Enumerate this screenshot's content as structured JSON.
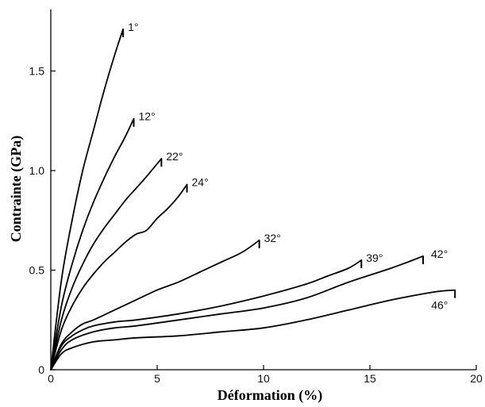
{
  "chart_data": {
    "type": "line",
    "title": "",
    "xlabel": "Déformation (%)",
    "ylabel": "Contrainte (GPa)",
    "xlim": [
      0,
      20
    ],
    "ylim": [
      0,
      1.8
    ],
    "x_ticks": [
      "0",
      "5",
      "10",
      "15",
      "20"
    ],
    "y_ticks": [
      "0",
      "0.5",
      "1.0",
      "1.5"
    ],
    "grid": false,
    "series": [
      {
        "name": "1°",
        "x": [
          0,
          0.5,
          1,
          1.5,
          2,
          2.5,
          3,
          3.4
        ],
        "y": [
          0,
          0.45,
          0.75,
          1.0,
          1.2,
          1.4,
          1.58,
          1.71
        ]
      },
      {
        "name": "12°",
        "x": [
          0,
          0.5,
          1,
          1.5,
          2,
          2.5,
          3,
          3.5,
          3.9
        ],
        "y": [
          0,
          0.32,
          0.53,
          0.7,
          0.84,
          0.96,
          1.07,
          1.17,
          1.26
        ]
      },
      {
        "name": "22°",
        "x": [
          0,
          0.5,
          1,
          1.5,
          2,
          2.5,
          3,
          3.5,
          4,
          4.5,
          5.2
        ],
        "y": [
          0,
          0.25,
          0.41,
          0.53,
          0.63,
          0.71,
          0.78,
          0.85,
          0.91,
          0.97,
          1.06
        ]
      },
      {
        "name": "24°",
        "x": [
          0,
          0.5,
          1,
          1.5,
          2,
          2.5,
          3,
          3.5,
          4,
          4.5,
          5,
          5.5,
          6,
          6.4
        ],
        "y": [
          0,
          0.2,
          0.32,
          0.41,
          0.48,
          0.54,
          0.59,
          0.64,
          0.68,
          0.7,
          0.76,
          0.81,
          0.87,
          0.93
        ]
      },
      {
        "name": "32°",
        "x": [
          0,
          0.5,
          1,
          1.5,
          2,
          3,
          4,
          5,
          6,
          7,
          8,
          9,
          9.8
        ],
        "y": [
          0,
          0.13,
          0.19,
          0.23,
          0.25,
          0.3,
          0.35,
          0.4,
          0.44,
          0.49,
          0.54,
          0.59,
          0.65
        ]
      },
      {
        "name": "39°",
        "x": [
          0,
          0.5,
          1,
          1.5,
          2,
          3,
          4,
          6,
          8,
          10,
          12,
          13,
          14,
          14.6
        ],
        "y": [
          0,
          0.12,
          0.17,
          0.2,
          0.22,
          0.24,
          0.25,
          0.28,
          0.32,
          0.37,
          0.43,
          0.47,
          0.51,
          0.55
        ]
      },
      {
        "name": "42°",
        "x": [
          0,
          0.5,
          1,
          2,
          3,
          4,
          6,
          8,
          10,
          12,
          14,
          16,
          17.5
        ],
        "y": [
          0,
          0.1,
          0.15,
          0.19,
          0.21,
          0.22,
          0.25,
          0.28,
          0.31,
          0.36,
          0.44,
          0.51,
          0.57
        ]
      },
      {
        "name": "46°",
        "x": [
          0,
          0.5,
          1,
          2,
          3,
          4,
          6,
          8,
          10,
          12,
          14,
          16,
          18,
          19
        ],
        "y": [
          0,
          0.08,
          0.11,
          0.14,
          0.15,
          0.16,
          0.17,
          0.19,
          0.21,
          0.25,
          0.3,
          0.35,
          0.39,
          0.4
        ]
      }
    ]
  }
}
